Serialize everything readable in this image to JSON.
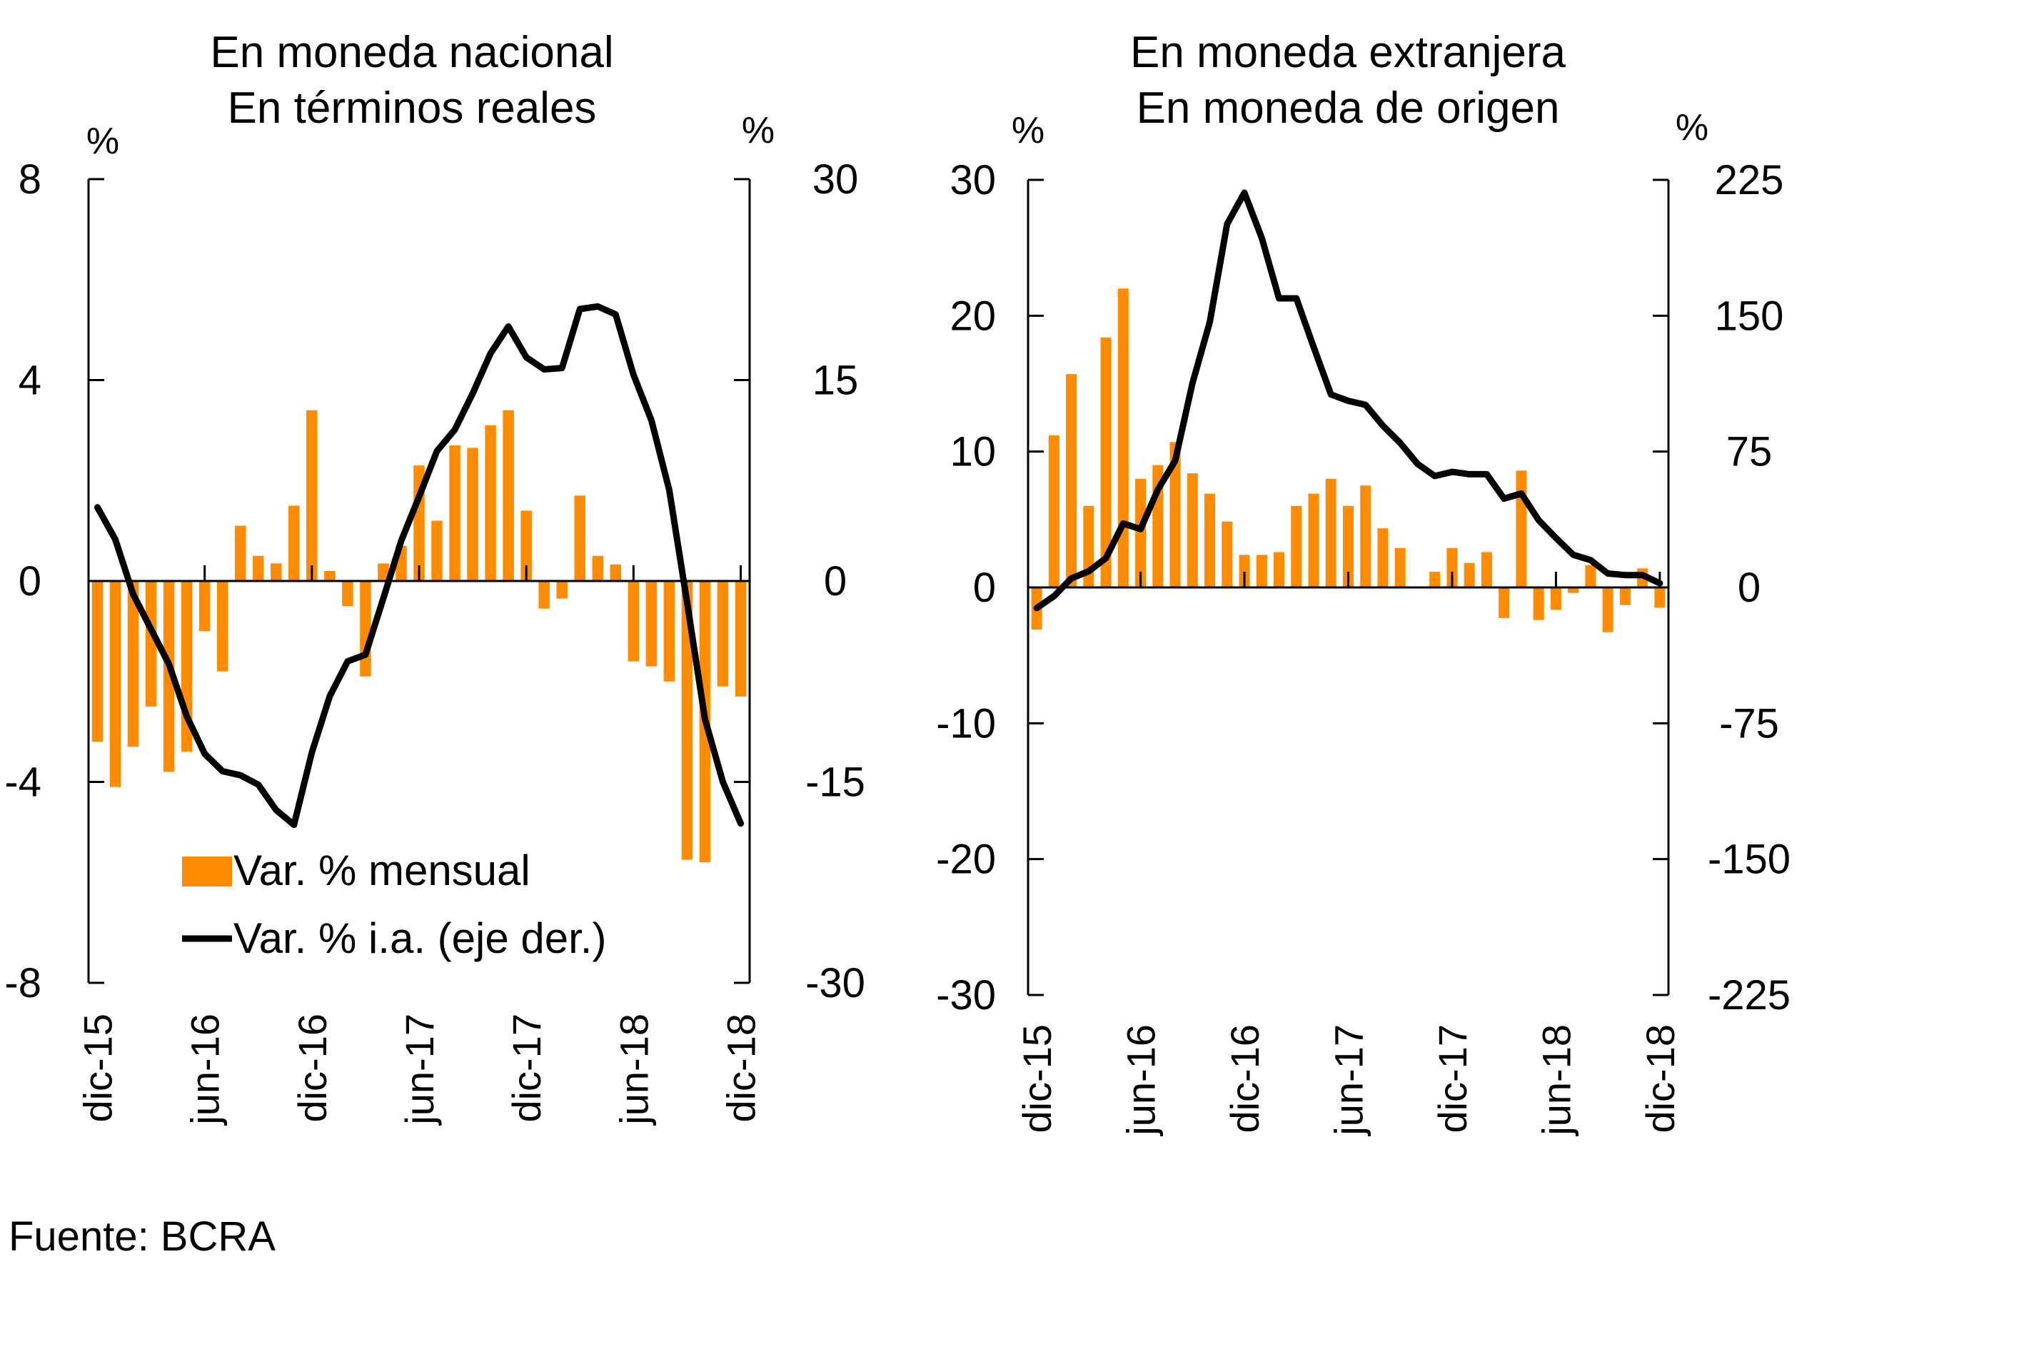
{
  "source": "Fuente: BCRA",
  "chart_data": [
    {
      "type": "bar+line",
      "title": [
        "En moneda nacional",
        "En términos reales"
      ],
      "left_unit": "%",
      "right_unit": "%",
      "left_axis": {
        "ylim": [
          -8,
          8
        ],
        "ticks": [
          8,
          4,
          0,
          -4,
          -8
        ],
        "tick_labels": [
          "8",
          "4",
          "0",
          "-4",
          "-8"
        ]
      },
      "right_axis": {
        "ylim": [
          -30,
          30
        ],
        "ticks": [
          30,
          15,
          0,
          -15,
          -30
        ],
        "tick_labels": [
          "30",
          "15",
          "0",
          "-15",
          "-30"
        ]
      },
      "x_tick_labels": [
        "dic-15",
        "jun-16",
        "dic-16",
        "jun-17",
        "dic-17",
        "jun-18",
        "dic-18"
      ],
      "x_tick_indices": [
        0,
        6,
        12,
        18,
        24,
        30,
        36
      ],
      "categories": [
        "dic-15",
        "ene-16",
        "feb-16",
        "mar-16",
        "abr-16",
        "may-16",
        "jun-16",
        "jul-16",
        "ago-16",
        "sep-16",
        "oct-16",
        "nov-16",
        "dic-16",
        "ene-17",
        "feb-17",
        "mar-17",
        "abr-17",
        "may-17",
        "jun-17",
        "jul-17",
        "ago-17",
        "sep-17",
        "oct-17",
        "nov-17",
        "dic-17",
        "ene-18",
        "feb-18",
        "mar-18",
        "abr-18",
        "may-18",
        "jun-18",
        "jul-18",
        "ago-18",
        "sep-18",
        "oct-18",
        "nov-18",
        "dic-18"
      ],
      "series": [
        {
          "name": "Var. % mensual",
          "kind": "bar",
          "axis": "left",
          "color": "#FF8C00",
          "values": [
            -3.2,
            -4.1,
            -3.3,
            -2.5,
            -3.8,
            -3.4,
            -1.0,
            -1.8,
            1.1,
            0.5,
            0.35,
            1.5,
            3.4,
            0.2,
            -0.5,
            -1.9,
            0.35,
            0.7,
            2.3,
            1.2,
            2.7,
            2.65,
            3.1,
            3.4,
            1.4,
            -0.55,
            -0.35,
            1.7,
            0.5,
            0.33,
            -1.6,
            -1.7,
            -2.0,
            -5.55,
            -5.6,
            -2.1,
            -2.3
          ]
        },
        {
          "name": "Var. % i.a. (eje der.)",
          "kind": "line",
          "axis": "right",
          "color": "#000000",
          "values": [
            5.5,
            3.1,
            -1.0,
            -3.6,
            -6.2,
            -10.1,
            -12.9,
            -14.2,
            -14.5,
            -15.2,
            -17.1,
            -18.2,
            -12.8,
            -8.6,
            -6.0,
            -5.5,
            -1.3,
            3.0,
            6.3,
            9.7,
            11.3,
            14.0,
            17.0,
            19.0,
            16.7,
            15.8,
            15.9,
            20.3,
            20.5,
            19.9,
            15.4,
            12.0,
            6.8,
            -1.6,
            -10.3,
            -15.0,
            -18.1
          ]
        }
      ],
      "legend": {
        "placement": "bottom-center",
        "items": [
          "Var. % mensual",
          "Var. % i.a. (eje der.)"
        ]
      }
    },
    {
      "type": "bar+line",
      "title": [
        "En moneda extranjera",
        "En moneda de origen"
      ],
      "left_unit": "%",
      "right_unit": "%",
      "left_axis": {
        "ylim": [
          -30,
          30
        ],
        "ticks": [
          30,
          20,
          10,
          0,
          -10,
          -20,
          -30
        ],
        "tick_labels": [
          "30",
          "20",
          "10",
          "0",
          "-10",
          "-20",
          "-30"
        ]
      },
      "right_axis": {
        "ylim": [
          -225,
          225
        ],
        "ticks": [
          225,
          150,
          75,
          0,
          -75,
          -150,
          -225
        ],
        "tick_labels": [
          "225",
          "150",
          "75",
          "0",
          "-75",
          "-150",
          "-225"
        ]
      },
      "x_tick_labels": [
        "dic-15",
        "jun-16",
        "dic-16",
        "jun-17",
        "dic-17",
        "jun-18",
        "dic-18"
      ],
      "x_tick_indices": [
        0,
        6,
        12,
        18,
        24,
        30,
        36
      ],
      "categories": [
        "dic-15",
        "ene-16",
        "feb-16",
        "mar-16",
        "abr-16",
        "may-16",
        "jun-16",
        "jul-16",
        "ago-16",
        "sep-16",
        "oct-16",
        "nov-16",
        "dic-16",
        "ene-17",
        "feb-17",
        "mar-17",
        "abr-17",
        "may-17",
        "jun-17",
        "jul-17",
        "ago-17",
        "sep-17",
        "oct-17",
        "nov-17",
        "dic-17",
        "ene-18",
        "feb-18",
        "mar-18",
        "abr-18",
        "may-18",
        "jun-18",
        "jul-18",
        "ago-18",
        "sep-18",
        "oct-18",
        "nov-18",
        "dic-18"
      ],
      "series": [
        {
          "name": "Var. % mensual",
          "kind": "bar",
          "axis": "left",
          "color": "#FF8C00",
          "values": [
            -3.1,
            11.2,
            15.7,
            6.0,
            18.4,
            22.0,
            8.0,
            9.0,
            10.7,
            8.4,
            6.9,
            4.85,
            2.4,
            2.4,
            2.6,
            6.0,
            6.9,
            8.0,
            6.0,
            7.5,
            4.35,
            2.9,
            -0.05,
            1.15,
            2.9,
            1.8,
            2.6,
            -2.25,
            8.6,
            -2.4,
            -1.65,
            -0.4,
            1.65,
            -3.3,
            -1.3,
            1.4,
            -1.5
          ]
        },
        {
          "name": "Var. % i.a. (eje der.)",
          "kind": "line",
          "axis": "right",
          "color": "#000000",
          "values": [
            -11.4,
            -4.8,
            5.0,
            8.9,
            16.2,
            35.3,
            32.2,
            54.0,
            70.0,
            112.8,
            146.6,
            200.6,
            217.9,
            193.0,
            159.6,
            159.6,
            132.7,
            106.5,
            103.0,
            100.8,
            89.3,
            79.8,
            68.2,
            61.5,
            63.8,
            62.5,
            62.5,
            49.0,
            51.8,
            37.1,
            27.3,
            18.0,
            15.1,
            7.7,
            6.8,
            6.8,
            2.3
          ]
        }
      ]
    }
  ]
}
